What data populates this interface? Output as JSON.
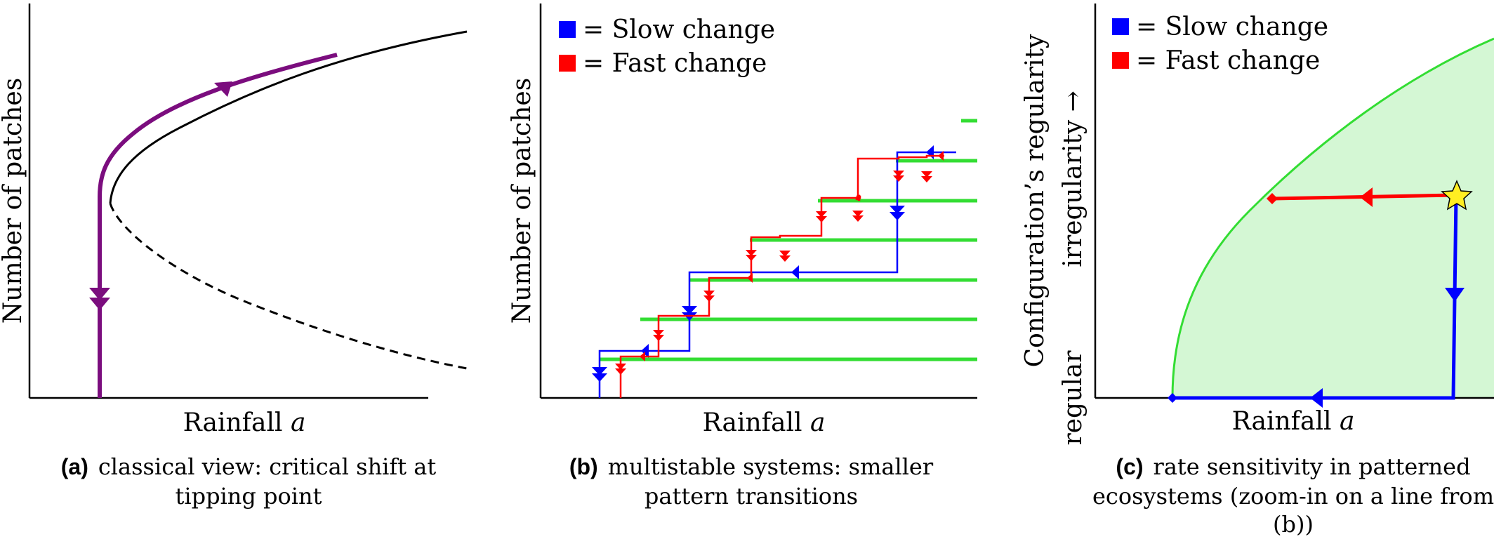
{
  "panels": [
    {
      "id": "a",
      "ylabel": "Number of patches",
      "xlabel_text": "Rainfall ",
      "xlabel_var": "a",
      "caption_tag": "(a)",
      "caption_lines": [
        "classical view: critical shift at",
        "tipping point"
      ]
    },
    {
      "id": "b",
      "ylabel": "Number of patches",
      "xlabel_text": "Rainfall ",
      "xlabel_var": "a",
      "caption_tag": "(b)",
      "caption_lines": [
        "multistable systems: smaller",
        "pattern transitions"
      ],
      "legend": [
        {
          "label": "= Slow change",
          "color": "#0000ff"
        },
        {
          "label": "= Fast change",
          "color": "#ff0000"
        }
      ]
    },
    {
      "id": "c",
      "ylabel": "Configuration’s regularity",
      "ylabel2": "irregularity →",
      "ylabel_low": "regular",
      "xlabel_text": "Rainfall ",
      "xlabel_var": "a",
      "caption_tag": "(c)",
      "caption_lines": [
        "rate sensitivity in patterned",
        "ecosystems (zoom-in on a line from",
        "(b))"
      ],
      "legend": [
        {
          "label": "= Slow change",
          "color": "#0000ff"
        },
        {
          "label": "= Fast change",
          "color": "#ff0000"
        }
      ]
    }
  ],
  "colors": {
    "hysteresis": "#7b0d7e",
    "slow": "#0000ff",
    "fast": "#ff0000",
    "branch": "#33dd33",
    "region_fill": "#d4f7d4",
    "star": "#ffee22"
  }
}
